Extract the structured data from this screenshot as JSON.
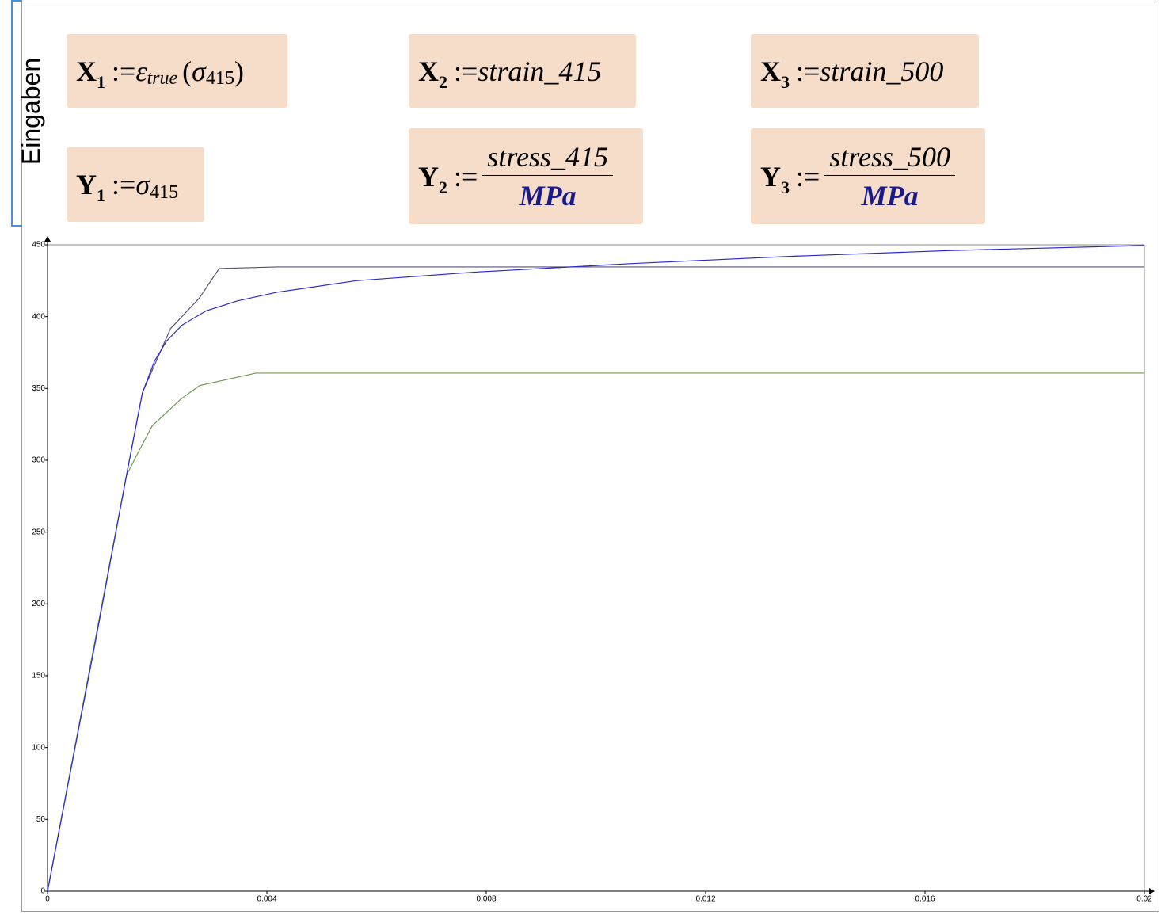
{
  "region_label": "Eingaben",
  "equations": [
    {
      "lhs": "X",
      "sub": "1",
      "op": ":=",
      "rhs": "ε",
      "rhs_sub": "true",
      "open": "(",
      "arg": "σ",
      "arg_sub": "415",
      "close": ")"
    },
    {
      "lhs": "X",
      "sub": "2",
      "op": ":=",
      "rhs": "strain_415"
    },
    {
      "lhs": "X",
      "sub": "3",
      "op": ":=",
      "rhs": "strain_500"
    },
    {
      "lhs": "Y",
      "sub": "1",
      "op": ":=",
      "rhs": "σ",
      "rhs_sub": "415"
    },
    {
      "lhs": "Y",
      "sub": "2",
      "op": ":=",
      "num": "stress_415",
      "den": "MPa"
    },
    {
      "lhs": "Y",
      "sub": "3",
      "op": ":=",
      "num": "stress_500",
      "den": "MPa"
    }
  ],
  "chart_data": {
    "type": "line",
    "xlim": [
      0,
      0.02
    ],
    "ylim": [
      0,
      450
    ],
    "xticks": [
      0,
      0.004,
      0.008,
      0.012,
      0.016,
      0.02
    ],
    "yticks": [
      0,
      50,
      100,
      150,
      200,
      250,
      300,
      350,
      400,
      450
    ],
    "series": [
      {
        "color": "#5a5070",
        "x": [
          0,
          0.00144,
          0.00173,
          0.00224,
          0.00277,
          0.00313,
          0.00419,
          0.02
        ],
        "values": [
          0,
          289.5,
          347,
          391.5,
          413,
          433.5,
          434.6,
          434.6
        ]
      },
      {
        "color": "#6f9a4f",
        "x": [
          0,
          0.00144,
          0.00166,
          0.00191,
          0.00243,
          0.00277,
          0.0038,
          0.02
        ],
        "values": [
          0,
          289.5,
          306,
          324,
          342.5,
          352,
          360.7,
          360.7
        ]
      },
      {
        "color": "#2a2ad0",
        "x": [
          0,
          0.00087,
          0.00144,
          0.00173,
          0.00195,
          0.00217,
          0.00245,
          0.00289,
          0.00347,
          0.00419,
          0.00563,
          0.0078,
          0.01069,
          0.01357,
          0.01646,
          0.02
        ],
        "values": [
          0,
          173,
          289.5,
          347,
          369,
          383,
          394,
          404,
          411,
          417,
          425,
          431,
          437,
          442,
          446,
          449.5
        ]
      }
    ]
  }
}
